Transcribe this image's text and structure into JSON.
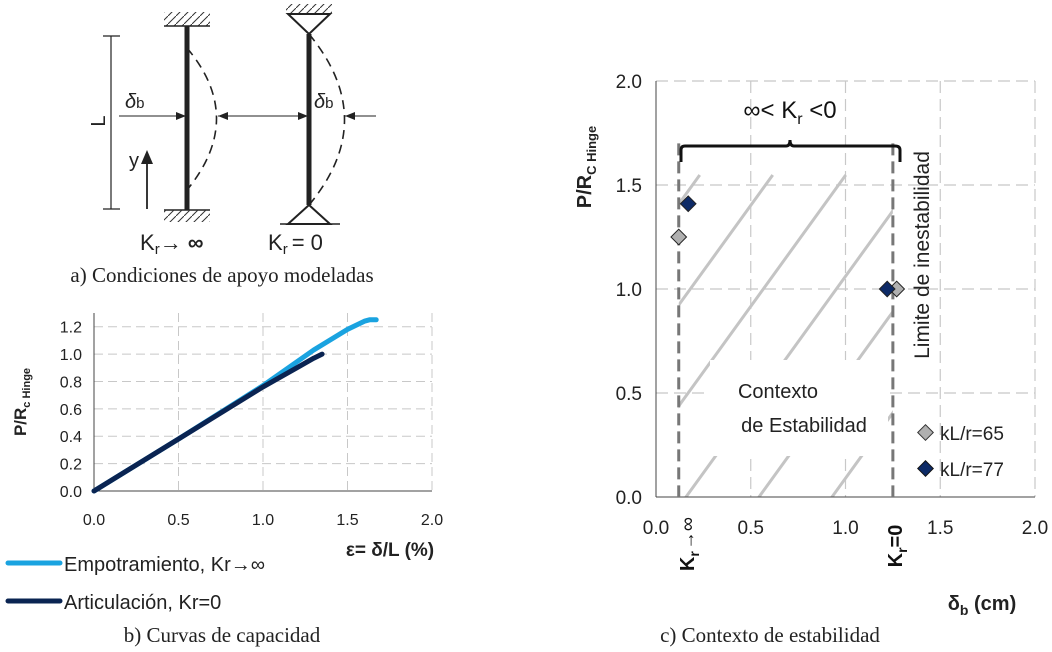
{
  "panel_a": {
    "caption": "a) Condiciones de apoyo modeladas",
    "length_label": "L",
    "deflection_label": "δ",
    "deflection_sub": "b",
    "y_label": "y",
    "left_support_label": "K",
    "left_support_sub": "r",
    "left_support_rhs": "→ ∞",
    "right_support_label": "K",
    "right_support_sub": "r",
    "right_support_rhs": "= 0"
  },
  "panel_b": {
    "caption": "b) Curvas de capacidad",
    "legend": [
      {
        "label": "Empotramiento, Kr→∞",
        "color": "#1aa3e0"
      },
      {
        "label": "Articulación, Kr=0",
        "color": "#0a2452"
      }
    ]
  },
  "panel_c": {
    "caption": "c) Contexto de estabilidad",
    "bracket_label_pre": "∞< K",
    "bracket_label_sub": "r",
    "bracket_label_post": " <0",
    "instability_label": "Limite de inestabilidad",
    "context_line1": "Contexto",
    "context_line2": "de Estabilidad",
    "kr_inf_main": "K",
    "kr_inf_sub": "r",
    "kr_inf_arrow": "→",
    "kr_inf_infinity": "∞",
    "kr_zero_main": "K",
    "kr_zero_sub": "r",
    "kr_zero_rhs": "=0",
    "legend": [
      {
        "label": "kL/r=65",
        "color": "#b0b0b0"
      },
      {
        "label": "kL/r=77",
        "color": "#0d2a66"
      }
    ]
  },
  "chart_data": [
    {
      "type": "line",
      "title": "b) Curvas de capacidad",
      "xlabel_main": "ε= δ/L (%)",
      "ylabel_main": "P/R",
      "ylabel_sub": "c Hinge",
      "xlim": [
        0,
        2.0
      ],
      "ylim": [
        0,
        1.3
      ],
      "x_ticks": [
        "0.0",
        "0.5",
        "1.0",
        "1.5",
        "2.0"
      ],
      "y_ticks": [
        "0.0",
        "0.2",
        "0.4",
        "0.6",
        "0.8",
        "1.0",
        "1.2"
      ],
      "grid": true,
      "series": [
        {
          "name": "Empotramiento, Kr→∞",
          "color": "#1aa3e0",
          "x": [
            0,
            0.5,
            1.0,
            1.3,
            1.5,
            1.6,
            1.63,
            1.67
          ],
          "y": [
            0,
            0.38,
            0.77,
            1.03,
            1.18,
            1.24,
            1.25,
            1.25
          ]
        },
        {
          "name": "Articulación, Kr=0",
          "color": "#0a2452",
          "x": [
            0,
            0.5,
            1.0,
            1.2,
            1.3,
            1.35
          ],
          "y": [
            0,
            0.38,
            0.76,
            0.9,
            0.97,
            1.0
          ]
        }
      ]
    },
    {
      "type": "scatter",
      "title": "c) Contexto de estabilidad",
      "xlabel_main": "δ",
      "xlabel_sub": "b",
      "xlabel_rest": " (cm)",
      "ylabel_main": "P/R",
      "ylabel_sub": "C Hinge",
      "xlim": [
        0,
        2.0
      ],
      "ylim": [
        0,
        2.0
      ],
      "x_ticks": [
        "0.0",
        "0.5",
        "1.0",
        "1.5",
        "2.0"
      ],
      "y_ticks": [
        "0.0",
        "0.5",
        "1.0",
        "1.5",
        "2.0"
      ],
      "grid": true,
      "vertical_limits": [
        0.12,
        1.25
      ],
      "series": [
        {
          "name": "kL/r=65",
          "color": "#b0b0b0",
          "x": [
            0.12,
            1.27
          ],
          "y": [
            1.25,
            1.0
          ]
        },
        {
          "name": "kL/r=77",
          "color": "#0d2a66",
          "x": [
            0.17,
            1.22
          ],
          "y": [
            1.41,
            1.0
          ]
        }
      ]
    }
  ]
}
